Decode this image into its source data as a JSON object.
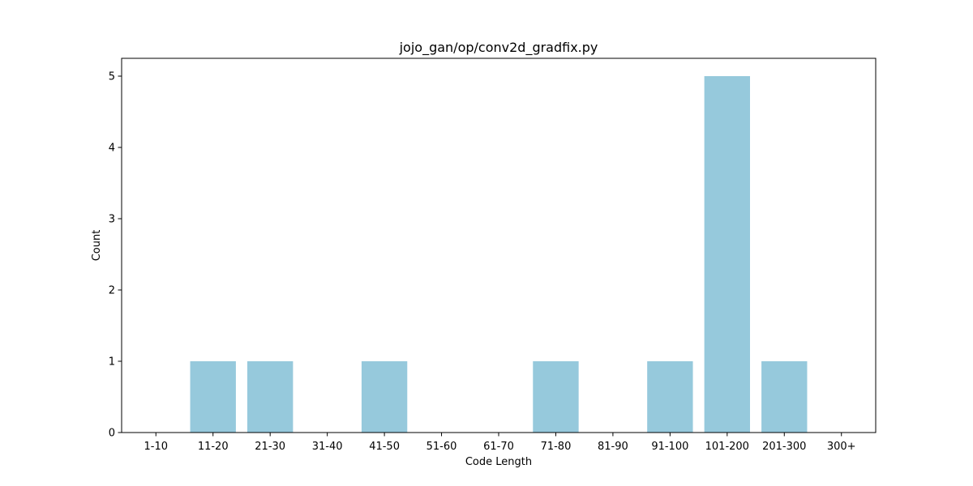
{
  "chart_data": {
    "type": "bar",
    "title": "jojo_gan/op/conv2d_gradfix.py",
    "xlabel": "Code Length",
    "ylabel": "Count",
    "categories": [
      "1-10",
      "11-20",
      "21-30",
      "31-40",
      "41-50",
      "51-60",
      "61-70",
      "71-80",
      "81-90",
      "91-100",
      "101-200",
      "201-300",
      "300+"
    ],
    "values": [
      0,
      1,
      1,
      0,
      1,
      0,
      0,
      1,
      0,
      1,
      5,
      1,
      0
    ],
    "ylim": [
      0,
      5.25
    ],
    "yticks": [
      0,
      1,
      2,
      3,
      4,
      5
    ],
    "bar_color": "#96c9dc",
    "grid": false,
    "legend": "none"
  }
}
